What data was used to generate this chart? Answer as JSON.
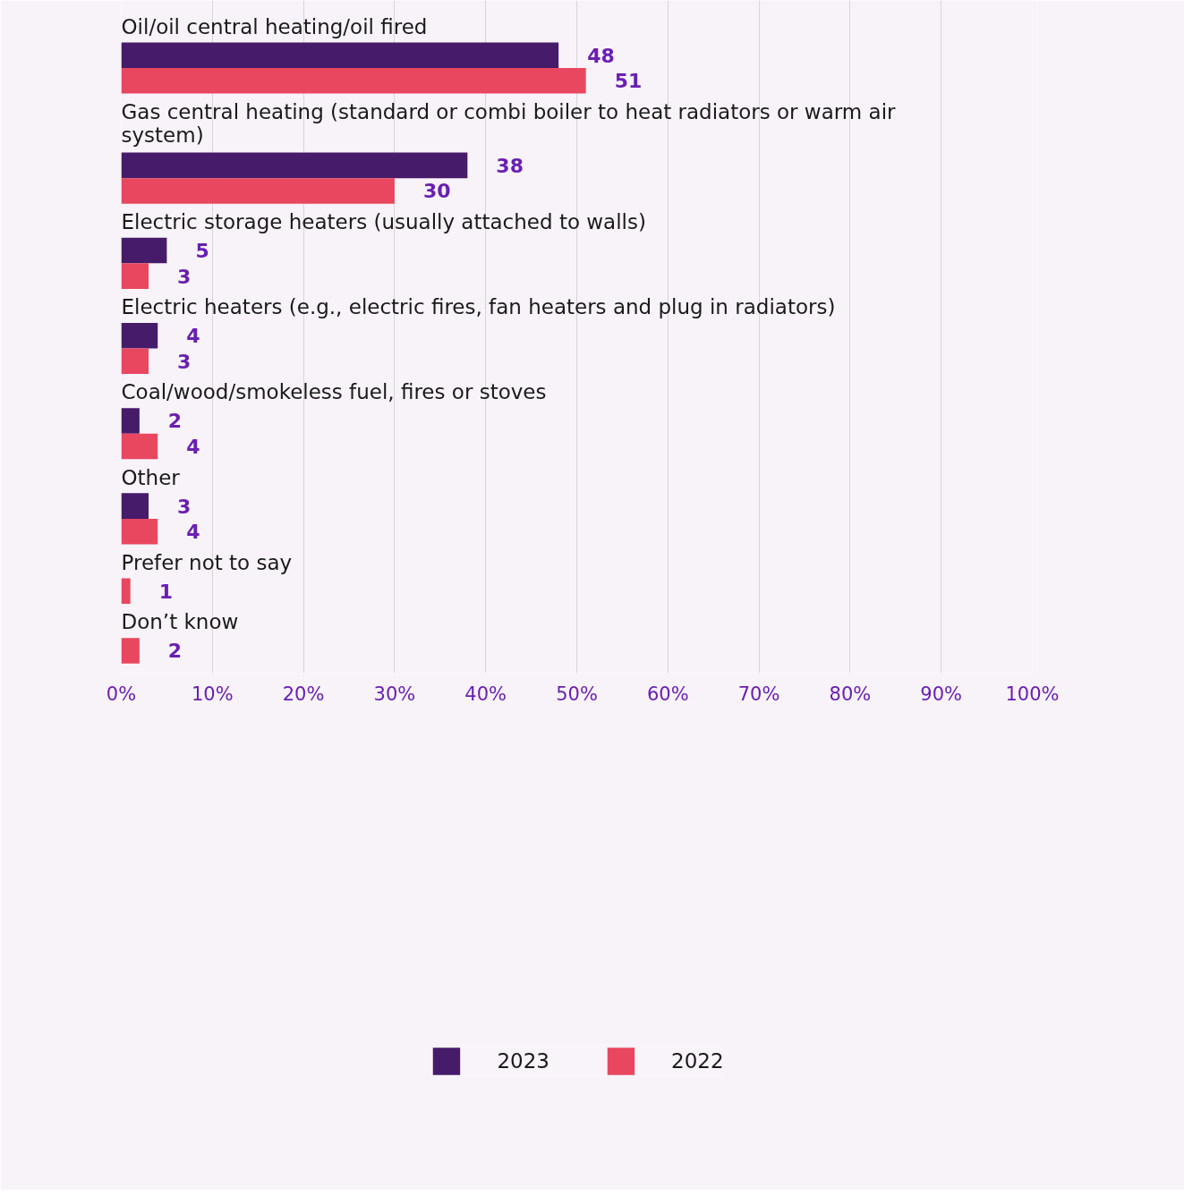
{
  "chart_data": {
    "type": "bar",
    "orientation": "horizontal",
    "categories": [
      "Oil/oil central heating/oil fired",
      "Gas central heating (standard or combi boiler to heat radiators or warm air system)",
      "Electric storage heaters (usually attached to walls)",
      "Electric heaters (e.g., electric fires, fan heaters and plug in radiators)",
      "Coal/wood/smokeless fuel, fires or stoves",
      "Other",
      "Prefer not to say",
      "Don’t know"
    ],
    "series": [
      {
        "name": "2023",
        "color": "#461b6a",
        "values": [
          48,
          38,
          5,
          4,
          2,
          3,
          null,
          null
        ]
      },
      {
        "name": "2022",
        "color": "#e8475f",
        "values": [
          51,
          30,
          3,
          3,
          4,
          4,
          1,
          2
        ]
      }
    ],
    "xlim": [
      0,
      100
    ],
    "xticks": [
      {
        "value": 0,
        "label": "0%"
      },
      {
        "value": 10,
        "label": "10%"
      },
      {
        "value": 20,
        "label": "20%"
      },
      {
        "value": 30,
        "label": "30%"
      },
      {
        "value": 40,
        "label": "40%"
      },
      {
        "value": 50,
        "label": "50%"
      },
      {
        "value": 60,
        "label": "60%"
      },
      {
        "value": 70,
        "label": "70%"
      },
      {
        "value": 80,
        "label": "80%"
      },
      {
        "value": 90,
        "label": "90%"
      },
      {
        "value": 100,
        "label": "100%"
      }
    ],
    "grid": "x",
    "legend": "bottom",
    "data_labels": true
  }
}
